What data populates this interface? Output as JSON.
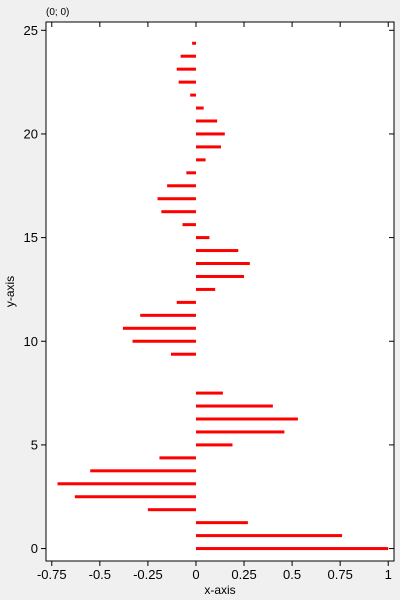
{
  "coord_readout": "(0; 0)",
  "chart_data": {
    "type": "bar",
    "orientation": "horizontal",
    "xlabel": "x-axis",
    "ylabel": "y-axis",
    "xlim": [
      -0.78,
      1.03
    ],
    "ylim": [
      -0.6,
      25.4
    ],
    "x_ticks": [
      -0.75,
      -0.5,
      -0.25,
      0,
      0.25,
      0.5,
      0.75,
      1
    ],
    "x_tick_labels": [
      "-0.75",
      "-0.5",
      "-0.25",
      "0",
      "0.25",
      "0.5",
      "0.75",
      "1"
    ],
    "y_ticks": [
      0,
      5,
      10,
      15,
      20,
      25
    ],
    "y_tick_labels": [
      "0",
      "5",
      "10",
      "15",
      "20",
      "25"
    ],
    "grid": false,
    "bar_color": "#ff0000",
    "y": [
      0,
      0.625,
      1.25,
      1.875,
      2.5,
      3.125,
      3.75,
      4.375,
      5,
      5.625,
      6.25,
      6.875,
      7.5,
      8.125,
      8.75,
      9.375,
      10,
      10.625,
      11.25,
      11.875,
      12.5,
      13.125,
      13.75,
      14.375,
      15,
      15.625,
      16.25,
      16.875,
      17.5,
      18.125,
      18.75,
      19.375,
      20,
      20.625,
      21.25,
      21.875,
      22.5,
      23.125,
      23.75,
      24.375
    ],
    "values": [
      1.0,
      0.76,
      0.27,
      -0.25,
      -0.63,
      -0.72,
      -0.55,
      -0.19,
      0.19,
      0.46,
      0.53,
      0.4,
      0.14,
      0.0,
      0.0,
      -0.13,
      -0.33,
      -0.38,
      -0.29,
      -0.1,
      0.1,
      0.25,
      0.28,
      0.22,
      0.07,
      -0.07,
      -0.18,
      -0.2,
      -0.15,
      -0.05,
      0.05,
      0.13,
      0.15,
      0.11,
      0.04,
      -0.03,
      -0.09,
      -0.1,
      -0.08,
      -0.02
    ]
  }
}
